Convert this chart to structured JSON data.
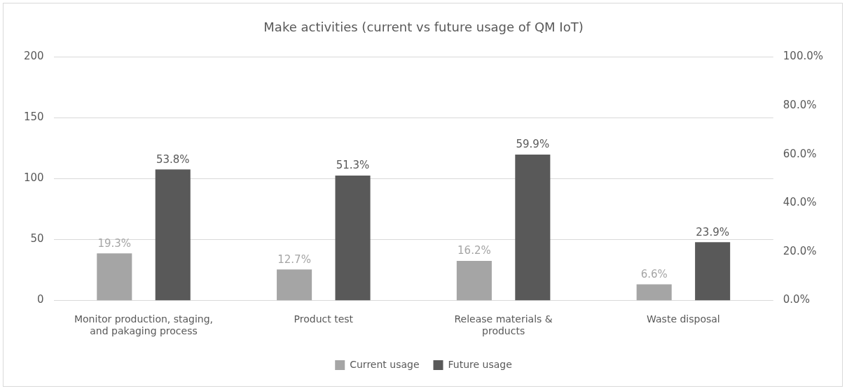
{
  "chart_data": {
    "type": "bar",
    "title": "Make activities (current vs future usage of QM IoT)",
    "categories": [
      "Monitor production, staging, and pakaging process",
      "Product test",
      "Release materials & products",
      "Waste disposal"
    ],
    "series": [
      {
        "name": "Current usage",
        "color": "#a5a5a5",
        "axis": "y2",
        "values": [
          19.3,
          12.7,
          16.2,
          6.6
        ],
        "value_labels": [
          "19.3%",
          "12.7%",
          "16.2%",
          "6.6%"
        ]
      },
      {
        "name": "Future usage",
        "color": "#595959",
        "axis": "y2",
        "values": [
          53.8,
          51.3,
          59.9,
          23.9
        ],
        "value_labels": [
          "53.8%",
          "51.3%",
          "59.9%",
          "23.9%"
        ]
      }
    ],
    "ylim": [
      0,
      200
    ],
    "yticks": [
      0,
      50,
      100,
      150,
      200
    ],
    "y2lim": [
      0,
      100
    ],
    "y2ticks": [
      {
        "value": 0,
        "label": "0.0%"
      },
      {
        "value": 20,
        "label": "20.0%"
      },
      {
        "value": 40,
        "label": "40.0%"
      },
      {
        "value": 60,
        "label": "60.0%"
      },
      {
        "value": 80,
        "label": "80.0%"
      },
      {
        "value": 100,
        "label": "100.0%"
      }
    ],
    "grid": "y",
    "legend": "bottom"
  }
}
